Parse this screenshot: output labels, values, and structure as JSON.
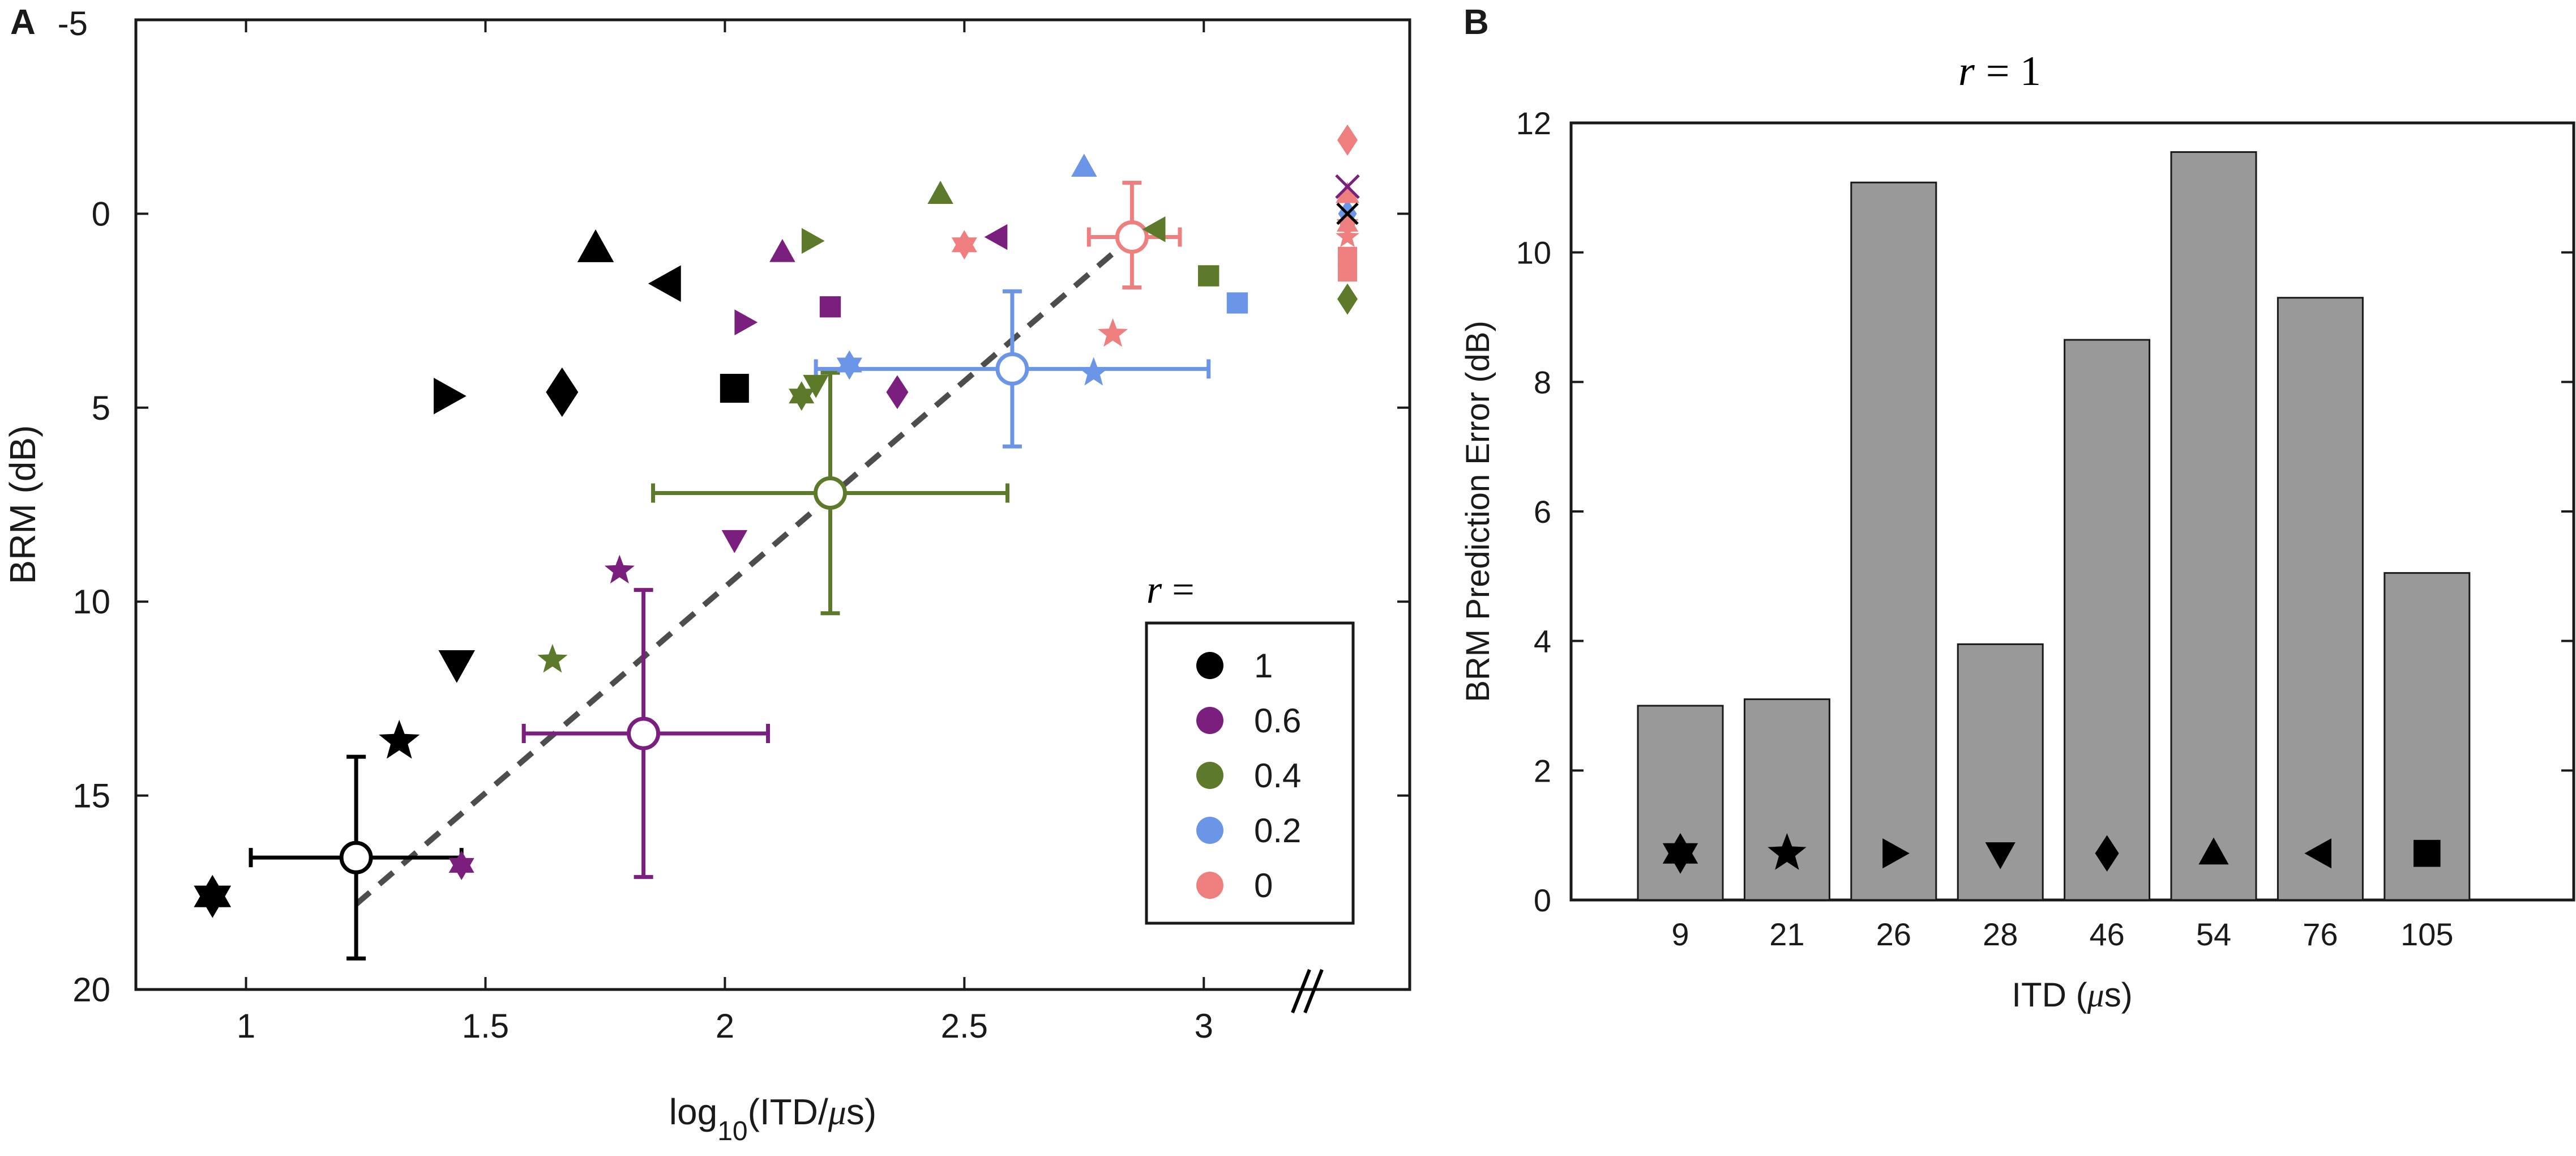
{
  "panel_a": {
    "panel_label": "A",
    "overflow_tick": "-5",
    "legend_title_var": "r",
    "legend_title_eq": "=",
    "legend": [
      {
        "label": "1",
        "color": "#000000"
      },
      {
        "label": "0.6",
        "color": "#7b1f7e"
      },
      {
        "label": "0.4",
        "color": "#5c7a29"
      },
      {
        "label": "0.2",
        "color": "#6b96e8"
      },
      {
        "label": "0",
        "color": "#ef7f7f"
      }
    ],
    "axis_break_mark": "//"
  },
  "panel_b": {
    "panel_label": "B",
    "title_var": "r",
    "title_eq": "= 1"
  },
  "chart_data": [
    {
      "type": "scatter",
      "panel": "A",
      "xlabel_main": "log",
      "xlabel_sub": "10",
      "xlabel_rest": "(ITD/",
      "xlabel_mu": "μ",
      "xlabel_end": "s)",
      "ylabel": "BRM (dB)",
      "xlim": [
        0.77,
        3.43
      ],
      "ylim": [
        20,
        -5
      ],
      "y_reversed": true,
      "xticks": [
        1,
        1.5,
        2,
        2.5,
        3
      ],
      "xtick_labels": [
        "1",
        "1.5",
        "2",
        "2.5",
        "3"
      ],
      "yticks": [
        0,
        5,
        10,
        15,
        20
      ],
      "ytick_labels": [
        "0",
        "5",
        "10",
        "15",
        "20"
      ],
      "colors": {
        "1": "#000000",
        "0.6": "#7b1f7e",
        "0.4": "#5c7a29",
        "0.2": "#6b96e8",
        "0": "#ef7f7f"
      },
      "points": [
        {
          "r": "1",
          "m": "hexagram",
          "x": 0.93,
          "y": 17.6,
          "s": 38
        },
        {
          "r": "1",
          "m": "star",
          "x": 1.32,
          "y": 13.6,
          "s": 38
        },
        {
          "r": "1",
          "m": "tri-down",
          "x": 1.44,
          "y": 11.6,
          "s": 34
        },
        {
          "r": "1",
          "m": "tri-right",
          "x": 1.42,
          "y": 4.7,
          "s": 34
        },
        {
          "r": "1",
          "m": "diamond",
          "x": 1.66,
          "y": 4.6,
          "s": 38
        },
        {
          "r": "1",
          "m": "tri-up",
          "x": 1.73,
          "y": 0.9,
          "s": 34
        },
        {
          "r": "1",
          "m": "tri-left",
          "x": 1.88,
          "y": 1.8,
          "s": 34
        },
        {
          "r": "1",
          "m": "square",
          "x": 2.02,
          "y": 4.5,
          "s": 30
        },
        {
          "r": "0.6",
          "m": "hexagram",
          "x": 1.45,
          "y": 16.8,
          "s": 26
        },
        {
          "r": "0.6",
          "m": "star",
          "x": 1.78,
          "y": 9.2,
          "s": 28
        },
        {
          "r": "0.6",
          "m": "tri-down",
          "x": 2.02,
          "y": 8.4,
          "s": 24
        },
        {
          "r": "0.6",
          "m": "tri-right",
          "x": 2.04,
          "y": 2.8,
          "s": 24
        },
        {
          "r": "0.6",
          "m": "diamond",
          "x": 2.36,
          "y": 4.6,
          "s": 26
        },
        {
          "r": "0.6",
          "m": "tri-up",
          "x": 2.12,
          "y": 1.0,
          "s": 24
        },
        {
          "r": "0.6",
          "m": "tri-left",
          "x": 2.57,
          "y": 0.6,
          "s": 24
        },
        {
          "r": "0.6",
          "m": "square",
          "x": 2.22,
          "y": 2.4,
          "s": 22
        },
        {
          "r": "0.4",
          "m": "hexagram",
          "x": 2.16,
          "y": 4.7,
          "s": 26
        },
        {
          "r": "0.4",
          "m": "star",
          "x": 1.64,
          "y": 11.5,
          "s": 28
        },
        {
          "r": "0.4",
          "m": "tri-down",
          "x": 2.19,
          "y": 4.4,
          "s": 24
        },
        {
          "r": "0.4",
          "m": "tri-right",
          "x": 2.18,
          "y": 0.7,
          "s": 24
        },
        {
          "r": "0.4",
          "m": "diamond",
          "x": 3.3,
          "y": 2.2,
          "s": 24
        },
        {
          "r": "0.4",
          "m": "tri-up",
          "x": 2.45,
          "y": -0.5,
          "s": 24
        },
        {
          "r": "0.4",
          "m": "tri-left",
          "x": 2.9,
          "y": 0.4,
          "s": 24
        },
        {
          "r": "0.4",
          "m": "square",
          "x": 3.01,
          "y": 1.6,
          "s": 22
        },
        {
          "r": "0.2",
          "m": "hexagram",
          "x": 2.26,
          "y": 3.9,
          "s": 26
        },
        {
          "r": "0.2",
          "m": "star",
          "x": 2.77,
          "y": 4.1,
          "s": 28
        },
        {
          "r": "0.2",
          "m": "tri-up",
          "x": 2.75,
          "y": -1.2,
          "s": 24
        },
        {
          "r": "0.2",
          "m": "square",
          "x": 3.07,
          "y": 2.3,
          "s": 22
        },
        {
          "r": "0.2",
          "m": "diamond",
          "x": 3.3,
          "y": 0.0,
          "s": 22
        },
        {
          "r": "0",
          "m": "hexagram",
          "x": 2.5,
          "y": 0.8,
          "s": 26
        },
        {
          "r": "0",
          "m": "star",
          "x": 2.81,
          "y": 3.1,
          "s": 28
        },
        {
          "r": "0",
          "m": "diamond",
          "x": 3.3,
          "y": -1.9,
          "s": 24
        },
        {
          "r": "0",
          "m": "tri-up",
          "x": 3.3,
          "y": -0.5,
          "s": 22
        },
        {
          "r": "0",
          "m": "hexagram",
          "x": 3.3,
          "y": 0.3,
          "s": 22
        },
        {
          "r": "0",
          "m": "star",
          "x": 3.3,
          "y": 0.6,
          "s": 22
        },
        {
          "r": "0",
          "m": "square",
          "x": 3.3,
          "y": 1.1,
          "s": 20
        },
        {
          "r": "0",
          "m": "square",
          "x": 3.3,
          "y": 1.5,
          "s": 20
        },
        {
          "r": "0.6",
          "m": "x",
          "x": 3.3,
          "y": -0.7,
          "s": 20
        },
        {
          "r": "1",
          "m": "x",
          "x": 3.3,
          "y": 0.0,
          "s": 18
        }
      ],
      "means": [
        {
          "r": "1",
          "x": 1.23,
          "y": 16.6,
          "xlo": 1.01,
          "xhi": 1.45,
          "ylo": 14.0,
          "yhi": 19.2
        },
        {
          "r": "0.6",
          "x": 1.83,
          "y": 13.4,
          "xlo": 1.58,
          "xhi": 2.09,
          "ylo": 9.7,
          "yhi": 17.1
        },
        {
          "r": "0.4",
          "x": 2.22,
          "y": 7.2,
          "xlo": 1.85,
          "xhi": 2.59,
          "ylo": 4.1,
          "yhi": 10.3
        },
        {
          "r": "0.2",
          "x": 2.6,
          "y": 4.0,
          "xlo": 2.19,
          "xhi": 3.01,
          "ylo": 2.0,
          "yhi": 6.0
        },
        {
          "r": "0",
          "x": 2.85,
          "y": 0.6,
          "xlo": 2.76,
          "xhi": 2.95,
          "ylo": -0.8,
          "yhi": 1.9
        }
      ],
      "fit_line": {
        "x1": 1.23,
        "y1": 17.8,
        "x2": 2.85,
        "y2": 0.6,
        "style": "dashed"
      }
    },
    {
      "type": "bar",
      "panel": "B",
      "title": "r = 1",
      "xlabel_main": "ITD (",
      "xlabel_mu": "μ",
      "xlabel_end": "s)",
      "ylabel": "BRM Prediction Error (dB)",
      "categories": [
        "9",
        "21",
        "26",
        "28",
        "46",
        "54",
        "76",
        "105"
      ],
      "values": [
        3.0,
        3.1,
        11.08,
        3.95,
        8.65,
        11.55,
        9.3,
        5.05
      ],
      "markers": [
        "hexagram",
        "star",
        "tri-right",
        "tri-down",
        "diamond",
        "tri-up",
        "tri-left",
        "square"
      ],
      "ylim": [
        0,
        12
      ],
      "yticks": [
        0,
        2,
        4,
        6,
        8,
        10,
        12
      ],
      "ytick_labels": [
        "0",
        "2",
        "4",
        "6",
        "8",
        "10",
        "12"
      ],
      "bar_color": "#999999"
    }
  ]
}
